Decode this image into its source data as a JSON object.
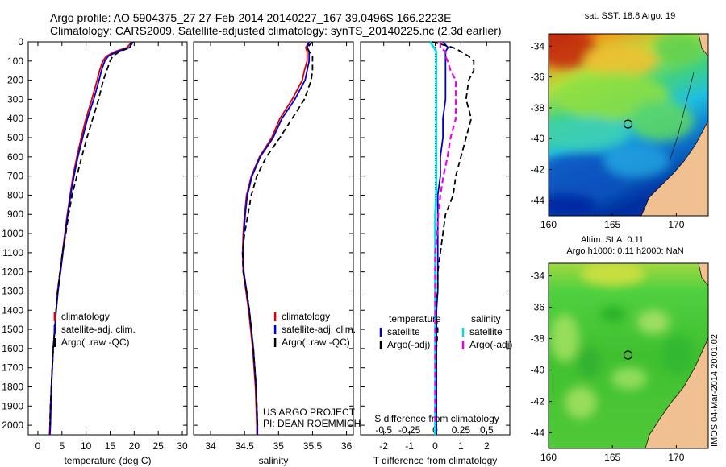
{
  "header": {
    "line1": "Argo profile: AO 5904375_27 27-Feb-2014 20140227_167 39.0496S 166.2223E",
    "line2": "Climatology: CARS2009. Satellite-adjusted climatology: synTS_20140225.nc (2.3d earlier)"
  },
  "side_caption": "IMOS 04-Mar-2014 20:01:02",
  "colors": {
    "climatology": "#dd0000",
    "satellite": "#0000cc",
    "argo": "#000000",
    "satellite_salinity": "#00dddd",
    "argo_salinity": "#ee00ee"
  },
  "chart_data": [
    {
      "type": "line",
      "panel": "temperature",
      "xlabel": "temperature (deg C)",
      "ylim": [
        2050,
        0
      ],
      "xlim": [
        -2,
        31
      ],
      "xticks": [
        "0",
        "5",
        "10",
        "15",
        "20",
        "25",
        "30"
      ],
      "yticks": [
        "0",
        "100",
        "200",
        "300",
        "400",
        "500",
        "600",
        "700",
        "800",
        "900",
        "1000",
        "1100",
        "1200",
        "1300",
        "1400",
        "1500",
        "1600",
        "1700",
        "1800",
        "1900",
        "2000"
      ],
      "depth": [
        0,
        30,
        50,
        75,
        100,
        150,
        200,
        300,
        400,
        500,
        600,
        700,
        800,
        900,
        1000,
        1100,
        1200,
        1300,
        1400,
        1500,
        1600,
        1700,
        1800,
        1900,
        2000,
        2050
      ],
      "series": [
        {
          "name": "climatology",
          "values": [
            19.5,
            18.5,
            16.0,
            14.2,
            13.5,
            12.8,
            12.3,
            11.2,
            10.0,
            9.0,
            8.1,
            7.3,
            6.7,
            6.1,
            5.6,
            5.1,
            4.6,
            4.1,
            3.8,
            3.5,
            3.2,
            3.0,
            2.8,
            2.6,
            2.5,
            2.4
          ]
        },
        {
          "name": "satellite-adj. clim.",
          "values": [
            19.8,
            19.0,
            16.5,
            14.6,
            13.9,
            13.2,
            12.7,
            11.6,
            10.3,
            9.3,
            8.3,
            7.5,
            6.8,
            6.2,
            5.7,
            5.2,
            4.7,
            4.2,
            3.8,
            3.5,
            3.2,
            3.0,
            2.8,
            2.7,
            2.6,
            2.5
          ]
        },
        {
          "name": "Argo(..raw -QC)",
          "values": [
            19.4,
            19.2,
            17.0,
            15.5,
            15.0,
            14.3,
            13.6,
            12.6,
            11.4,
            10.2,
            9.1,
            8.1,
            7.1,
            6.4,
            5.8,
            5.1,
            4.6,
            4.1,
            3.8,
            3.5,
            3.2,
            3.0,
            2.8,
            2.6,
            2.5,
            null
          ]
        }
      ]
    },
    {
      "type": "line",
      "panel": "salinity",
      "xlabel": "salinity",
      "ylim": [
        2050,
        0
      ],
      "xlim": [
        33.75,
        36.1
      ],
      "xticks": [
        "34",
        "34.5",
        "35",
        "35.5",
        "36"
      ],
      "depth": [
        0,
        30,
        50,
        75,
        100,
        150,
        200,
        300,
        400,
        500,
        600,
        700,
        800,
        900,
        1000,
        1100,
        1200,
        1300,
        1400,
        1500,
        1600,
        1700,
        1800,
        1900,
        2000,
        2050
      ],
      "series": [
        {
          "name": "climatology",
          "values": [
            35.45,
            35.4,
            35.42,
            35.42,
            35.42,
            35.38,
            35.35,
            35.2,
            35.02,
            34.9,
            34.72,
            34.6,
            34.53,
            34.5,
            34.48,
            34.47,
            34.48,
            34.52,
            34.56,
            34.59,
            34.62,
            34.64,
            34.66,
            34.67,
            34.68,
            34.68
          ]
        },
        {
          "name": "satellite-adj. clim.",
          "values": [
            35.45,
            35.42,
            35.45,
            35.45,
            35.45,
            35.42,
            35.39,
            35.24,
            35.05,
            34.92,
            34.73,
            34.61,
            34.54,
            34.51,
            34.49,
            34.48,
            34.49,
            34.53,
            34.57,
            34.6,
            34.63,
            34.65,
            34.67,
            34.68,
            34.69,
            34.69
          ]
        },
        {
          "name": "Argo(..raw -QC)",
          "values": [
            35.5,
            35.42,
            35.45,
            35.5,
            35.5,
            35.5,
            35.48,
            35.38,
            35.2,
            35.02,
            34.82,
            34.68,
            34.6,
            34.55,
            34.5,
            34.47,
            34.48,
            34.53,
            34.57,
            34.6,
            34.63,
            34.65,
            34.67,
            34.68,
            34.69,
            null
          ]
        }
      ]
    },
    {
      "type": "line",
      "panel": "differences",
      "xlabel": "T difference from climatology",
      "x2label": "S difference from climatology",
      "ylim": [
        2050,
        0
      ],
      "xlim": [
        -2.9,
        2.9
      ],
      "xticks": [
        "-2",
        "-1",
        "0",
        "1",
        "2"
      ],
      "x2lim": [
        -0.725,
        0.725
      ],
      "x2ticks": [
        "-0.5",
        "-0.25",
        "0",
        "0.25",
        "0.5"
      ],
      "legend_groups": [
        "temperature",
        "salinity"
      ],
      "depth": [
        0,
        30,
        50,
        75,
        100,
        150,
        200,
        300,
        400,
        500,
        600,
        700,
        800,
        900,
        1000,
        1100,
        1200,
        1300,
        1400,
        1500,
        1600,
        1700,
        1800,
        1900,
        2000,
        2050
      ],
      "series": [
        {
          "name": "satellite",
          "group": "temperature",
          "values": [
            0.3,
            0.5,
            0.4,
            0.4,
            0.4,
            0.4,
            0.4,
            0.4,
            0.3,
            0.3,
            0.2,
            0.2,
            0.1,
            0.1,
            0.1,
            0.1,
            0.1,
            0.1,
            0.05,
            0.05,
            0.05,
            0.05,
            0.05,
            0.05,
            0.05,
            0.05
          ]
        },
        {
          "name": "Argo(-adj)",
          "group": "temperature",
          "values": [
            -0.1,
            0.7,
            1.0,
            1.3,
            1.5,
            1.5,
            1.3,
            1.2,
            1.4,
            1.2,
            1.0,
            0.8,
            0.7,
            0.4,
            0.3,
            0.2,
            0.1,
            0.1,
            0.0,
            0.1,
            0.05,
            0.05,
            0.0,
            0.0,
            0.05,
            null
          ]
        },
        {
          "name": "satellite",
          "group": "salinity",
          "values": [
            -0.05,
            -0.01,
            0.01,
            0.01,
            0.01,
            0.01,
            0.01,
            0.01,
            0.01,
            0.01,
            0.01,
            0.01,
            0.01,
            0.0,
            0.0,
            0.0,
            0.0,
            0.0,
            0.0,
            0.0,
            0.0,
            0.0,
            0.0,
            0.0,
            0.0,
            0.0
          ]
        },
        {
          "name": "Argo(-adj)",
          "group": "salinity",
          "values": [
            0.05,
            0.05,
            0.1,
            0.1,
            0.12,
            0.15,
            0.2,
            0.2,
            0.2,
            0.15,
            0.12,
            0.08,
            0.05,
            0.03,
            0.02,
            0.0,
            0.0,
            0.0,
            0.0,
            0.0,
            0.0,
            0.0,
            0.0,
            0.0,
            0.0,
            null
          ]
        }
      ]
    }
  ],
  "project_note": {
    "line1": "US ARGO PROJECT",
    "line2": "PI: DEAN ROEMMICH"
  },
  "maps": [
    {
      "title": "sat. SST: 18.8 Argo: 19",
      "subtitle": "",
      "type": "heatmap",
      "xlim": [
        160,
        172.5
      ],
      "ylim": [
        -45,
        -33.2
      ],
      "xticks": [
        "160",
        "165",
        "170"
      ],
      "yticks": [
        "-34",
        "-36",
        "-38",
        "-40",
        "-42",
        "-44"
      ],
      "argo_position": {
        "lon": 166.22,
        "lat": -39.05
      }
    },
    {
      "title": "Altim. SLA: 0.11",
      "subtitle": "Argo h1000: 0.11 h2000: NaN",
      "type": "heatmap",
      "xlim": [
        160,
        172.5
      ],
      "ylim": [
        -45,
        -33.2
      ],
      "xticks": [
        "160",
        "165",
        "170"
      ],
      "yticks": [
        "-34",
        "-36",
        "-38",
        "-40",
        "-42",
        "-44"
      ],
      "argo_position": {
        "lon": 166.22,
        "lat": -39.05
      }
    }
  ]
}
